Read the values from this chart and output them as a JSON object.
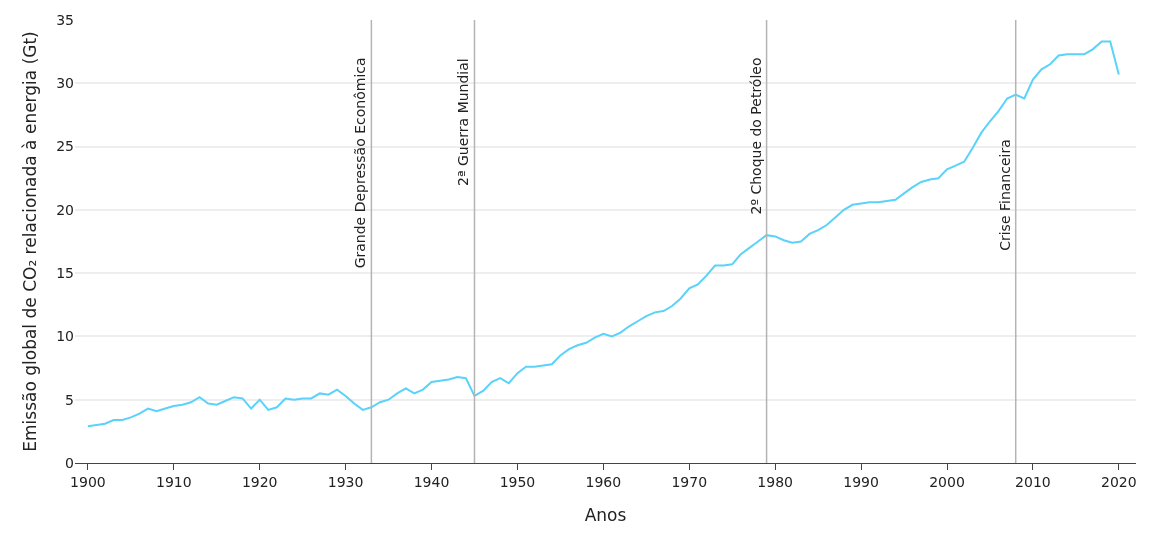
{
  "chart_data": {
    "type": "line",
    "xlabel": "Anos",
    "ylabel": "Emissão global de CO₂ relacionada à energia (Gt)",
    "x": [
      1900,
      1901,
      1902,
      1903,
      1904,
      1905,
      1906,
      1907,
      1908,
      1909,
      1910,
      1911,
      1912,
      1913,
      1914,
      1915,
      1916,
      1917,
      1918,
      1919,
      1920,
      1921,
      1922,
      1923,
      1924,
      1925,
      1926,
      1927,
      1928,
      1929,
      1930,
      1931,
      1932,
      1933,
      1934,
      1935,
      1936,
      1937,
      1938,
      1939,
      1940,
      1941,
      1942,
      1943,
      1944,
      1945,
      1946,
      1947,
      1948,
      1949,
      1950,
      1951,
      1952,
      1953,
      1954,
      1955,
      1956,
      1957,
      1958,
      1959,
      1960,
      1961,
      1962,
      1963,
      1964,
      1965,
      1966,
      1967,
      1968,
      1969,
      1970,
      1971,
      1972,
      1973,
      1974,
      1975,
      1976,
      1977,
      1978,
      1979,
      1980,
      1981,
      1982,
      1983,
      1984,
      1985,
      1986,
      1987,
      1988,
      1989,
      1990,
      1991,
      1992,
      1993,
      1994,
      1995,
      1996,
      1997,
      1998,
      1999,
      2000,
      2001,
      2002,
      2003,
      2004,
      2005,
      2006,
      2007,
      2008,
      2009,
      2010,
      2011,
      2012,
      2013,
      2014,
      2015,
      2016,
      2017,
      2018,
      2019,
      2020
    ],
    "series": [
      {
        "color": "#5ad2fa",
        "values": [
          2.9,
          3.0,
          3.1,
          3.4,
          3.4,
          3.6,
          3.9,
          4.3,
          4.1,
          4.3,
          4.5,
          4.6,
          4.8,
          5.2,
          4.7,
          4.6,
          4.9,
          5.2,
          5.1,
          4.3,
          5.0,
          4.2,
          4.4,
          5.1,
          5.0,
          5.1,
          5.1,
          5.5,
          5.4,
          5.8,
          5.3,
          4.7,
          4.2,
          4.4,
          4.8,
          5.0,
          5.5,
          5.9,
          5.5,
          5.8,
          6.4,
          6.5,
          6.6,
          6.8,
          6.7,
          5.3,
          5.7,
          6.4,
          6.7,
          6.3,
          7.1,
          7.6,
          7.6,
          7.7,
          7.8,
          8.5,
          9.0,
          9.3,
          9.5,
          9.9,
          10.2,
          10.0,
          10.3,
          10.8,
          11.2,
          11.6,
          11.9,
          12.0,
          12.4,
          13.0,
          13.8,
          14.1,
          14.8,
          15.6,
          15.6,
          15.7,
          16.5,
          17.0,
          17.5,
          18.0,
          17.9,
          17.6,
          17.4,
          17.5,
          18.1,
          18.4,
          18.8,
          19.4,
          20.0,
          20.4,
          20.5,
          20.6,
          20.6,
          20.7,
          20.8,
          21.3,
          21.8,
          22.2,
          22.4,
          22.5,
          23.2,
          23.5,
          23.8,
          24.9,
          26.1,
          27.0,
          27.8,
          28.8,
          29.1,
          28.8,
          30.3,
          31.1,
          31.5,
          32.2,
          32.3,
          32.3,
          32.3,
          32.7,
          33.3,
          33.3,
          30.7
        ]
      }
    ],
    "xlim": [
      1898.5,
      2022
    ],
    "xticks": [
      1900,
      1910,
      1920,
      1930,
      1940,
      1950,
      1960,
      1970,
      1980,
      1990,
      2000,
      2010,
      2020
    ],
    "ylim": [
      0,
      35
    ],
    "yticks": [
      0,
      5,
      10,
      15,
      20,
      25,
      30,
      35
    ],
    "grid": "y",
    "marker": "none",
    "line_style": "solid",
    "ref_lines": [
      {
        "axis": "x",
        "value": 1933,
        "label": "Grande Depressão Econômica",
        "color": "#b4b4b4"
      },
      {
        "axis": "x",
        "value": 1945,
        "label": "2ª Guerra Mundial",
        "color": "#b4b4b4"
      },
      {
        "axis": "x",
        "value": 1979,
        "label": "2º Choque do Petróleo",
        "color": "#b4b4b4"
      },
      {
        "axis": "x",
        "value": 2008,
        "label": "Crise Financeira",
        "color": "#b4b4b4"
      }
    ]
  }
}
